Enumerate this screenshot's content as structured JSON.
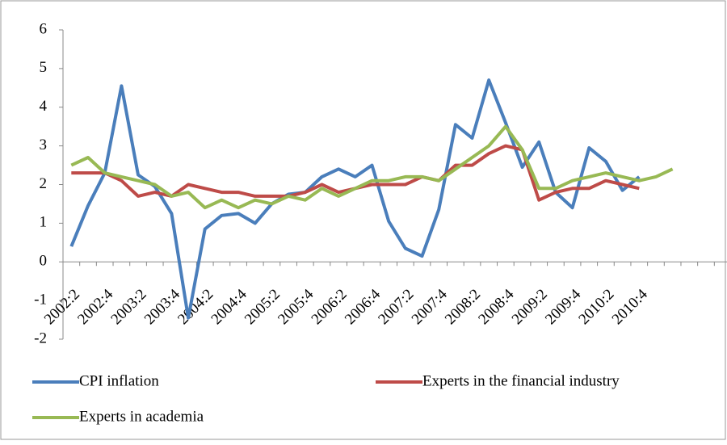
{
  "chart_data": {
    "type": "line",
    "categories": [
      "2002:2",
      null,
      "2002:4",
      null,
      "2003:2",
      null,
      "2003:4",
      null,
      "2004:2",
      null,
      "2004:4",
      null,
      "2005:2",
      null,
      "2005:4",
      null,
      "2006:2",
      null,
      "2006:4",
      null,
      "2007:2",
      null,
      "2007:4",
      null,
      "2008:2",
      null,
      "2008:4",
      null,
      "2009:2",
      null,
      "2009:4",
      null,
      "2010:2",
      null,
      "2010:4",
      null,
      null,
      null,
      null,
      null
    ],
    "series": [
      {
        "name": "CPI inflation",
        "color": "#4a7ebb",
        "values": [
          0.4,
          1.45,
          2.3,
          4.55,
          2.25,
          1.95,
          1.25,
          -1.45,
          0.85,
          1.2,
          1.25,
          1.0,
          1.5,
          1.75,
          1.8,
          2.2,
          2.4,
          2.2,
          2.5,
          1.05,
          0.35,
          0.15,
          1.35,
          3.55,
          3.2,
          4.7,
          3.6,
          2.45,
          3.1,
          1.8,
          1.4,
          2.95,
          2.6,
          1.85,
          2.2,
          null,
          null,
          null,
          null,
          null
        ]
      },
      {
        "name": "Experts in the financial industry",
        "color": "#be4b48",
        "values": [
          2.3,
          2.3,
          2.3,
          2.1,
          1.7,
          1.8,
          1.7,
          2.0,
          1.9,
          1.8,
          1.8,
          1.7,
          1.7,
          1.7,
          1.8,
          2.0,
          1.8,
          1.9,
          2.0,
          2.0,
          2.0,
          2.2,
          2.1,
          2.5,
          2.5,
          2.8,
          3.0,
          2.9,
          1.6,
          1.8,
          1.9,
          1.9,
          2.1,
          2.0,
          1.9,
          null,
          null,
          null,
          null,
          null
        ]
      },
      {
        "name": "Experts in academia",
        "color": "#98b954",
        "values": [
          2.5,
          2.7,
          2.3,
          2.2,
          2.1,
          2.0,
          1.7,
          1.8,
          1.4,
          1.6,
          1.4,
          1.6,
          1.5,
          1.7,
          1.6,
          1.9,
          1.7,
          1.9,
          2.1,
          2.1,
          2.2,
          2.2,
          2.1,
          2.4,
          2.7,
          3.0,
          3.5,
          2.9,
          1.9,
          1.9,
          2.1,
          2.2,
          2.3,
          2.2,
          2.1,
          2.2,
          2.4,
          null,
          null,
          null
        ]
      }
    ],
    "ylim": [
      -2,
      6
    ],
    "yticks": [
      -2,
      -1,
      0,
      1,
      2,
      3,
      4,
      5,
      6
    ]
  }
}
